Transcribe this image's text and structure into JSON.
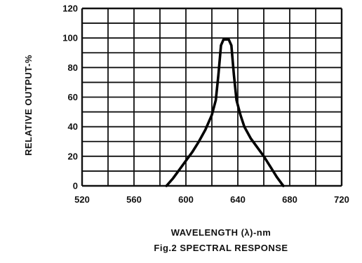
{
  "chart_data": {
    "type": "line",
    "title": "Fig.2 SPECTRAL RESPONSE",
    "xlabel": "WAVELENGTH (λ)-nm",
    "ylabel": "RELATIVE OUTPUT-%",
    "xlim": [
      520,
      720
    ],
    "ylim": [
      0,
      120
    ],
    "x_ticks": [
      520,
      560,
      600,
      640,
      680,
      720
    ],
    "y_ticks": [
      0,
      20,
      40,
      60,
      80,
      100,
      120
    ],
    "grid": true,
    "series": [
      {
        "x": [
          585,
          590,
          595,
          600,
          605,
          610,
          615,
          620,
          623,
          625,
          627,
          629,
          631,
          633,
          635,
          637,
          639,
          642,
          645,
          650,
          655,
          660,
          665,
          670,
          675
        ],
        "y": [
          0,
          5,
          11,
          17,
          23,
          30,
          38,
          48,
          58,
          75,
          95,
          99,
          99,
          99,
          95,
          75,
          58,
          48,
          40,
          32,
          26,
          20,
          13,
          6,
          0
        ]
      }
    ]
  }
}
